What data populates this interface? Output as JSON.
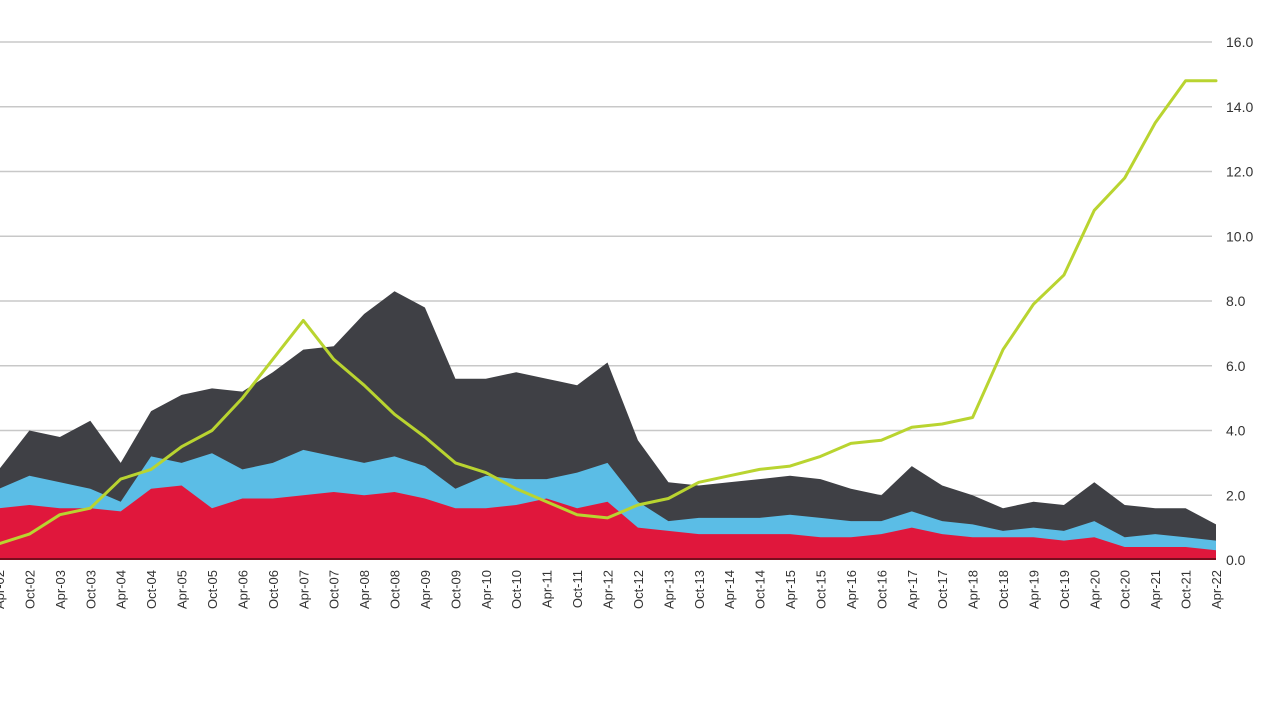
{
  "chart_data": {
    "type": "area",
    "title": "",
    "xlabel": "",
    "ylabel": "",
    "ylim": [
      0,
      16
    ],
    "yticks": [
      "0.0",
      "2.0",
      "4.0",
      "6.0",
      "8.0",
      "10.0",
      "12.0",
      "14.0",
      "16.0"
    ],
    "grid": true,
    "x_labels": [
      "Apr-02",
      "Oct-02",
      "Apr-03",
      "Oct-03",
      "Apr-04",
      "Oct-04",
      "Apr-05",
      "Oct-05",
      "Apr-06",
      "Oct-06",
      "Apr-07",
      "Oct-07",
      "Apr-08",
      "Oct-08",
      "Apr-09",
      "Oct-09",
      "Apr-10",
      "Oct-10",
      "Apr-11",
      "Oct-11",
      "Apr-12",
      "Oct-12",
      "Apr-13",
      "Oct-13",
      "Apr-14",
      "Oct-14",
      "Apr-15",
      "Oct-15",
      "Apr-16",
      "Oct-16",
      "Apr-17",
      "Oct-17",
      "Apr-18",
      "Oct-18",
      "Apr-19",
      "Oct-19",
      "Apr-20",
      "Oct-20",
      "Apr-21",
      "Oct-21",
      "Apr-22"
    ],
    "series": [
      {
        "color": "#3f4045",
        "type": "area",
        "values": [
          2.8,
          4.0,
          3.8,
          4.3,
          3.0,
          4.6,
          5.1,
          5.3,
          5.2,
          5.8,
          6.5,
          6.6,
          7.6,
          8.3,
          7.8,
          5.6,
          5.6,
          5.8,
          5.6,
          5.4,
          6.1,
          3.7,
          2.4,
          2.3,
          2.4,
          2.5,
          2.6,
          2.5,
          2.2,
          2.0,
          2.9,
          2.3,
          2.0,
          1.6,
          1.8,
          1.7,
          2.4,
          1.7,
          1.6,
          1.6,
          1.1
        ]
      },
      {
        "color": "#5bbde6",
        "type": "area",
        "values": [
          2.2,
          2.6,
          2.4,
          2.2,
          1.8,
          3.2,
          3.0,
          3.3,
          2.8,
          3.0,
          3.4,
          3.2,
          3.0,
          3.2,
          2.9,
          2.2,
          2.6,
          2.5,
          2.5,
          2.7,
          3.0,
          1.8,
          1.2,
          1.3,
          1.3,
          1.3,
          1.4,
          1.3,
          1.2,
          1.2,
          1.5,
          1.2,
          1.1,
          0.9,
          1.0,
          0.9,
          1.2,
          0.7,
          0.8,
          0.7,
          0.6
        ]
      },
      {
        "color": "#e0173c",
        "type": "area",
        "values": [
          1.6,
          1.7,
          1.6,
          1.6,
          1.5,
          2.2,
          2.3,
          1.6,
          1.9,
          1.9,
          2.0,
          2.1,
          2.0,
          2.1,
          1.9,
          1.6,
          1.6,
          1.7,
          1.9,
          1.6,
          1.8,
          1.0,
          0.9,
          0.8,
          0.8,
          0.8,
          0.8,
          0.7,
          0.7,
          0.8,
          1.0,
          0.8,
          0.7,
          0.7,
          0.7,
          0.6,
          0.7,
          0.4,
          0.4,
          0.4,
          0.3
        ]
      },
      {
        "color": "#b9d430",
        "type": "line",
        "values": [
          0.5,
          0.8,
          1.4,
          1.6,
          2.5,
          2.8,
          3.5,
          4.0,
          5.0,
          6.2,
          7.4,
          6.2,
          5.4,
          4.5,
          3.8,
          3.0,
          2.7,
          2.2,
          1.8,
          1.4,
          1.3,
          1.7,
          1.9,
          2.4,
          2.6,
          2.8,
          2.9,
          3.2,
          3.6,
          3.7,
          4.1,
          4.2,
          4.4,
          6.5,
          7.9,
          8.8,
          10.8,
          11.8,
          13.5,
          14.8,
          14.8
        ]
      }
    ]
  }
}
